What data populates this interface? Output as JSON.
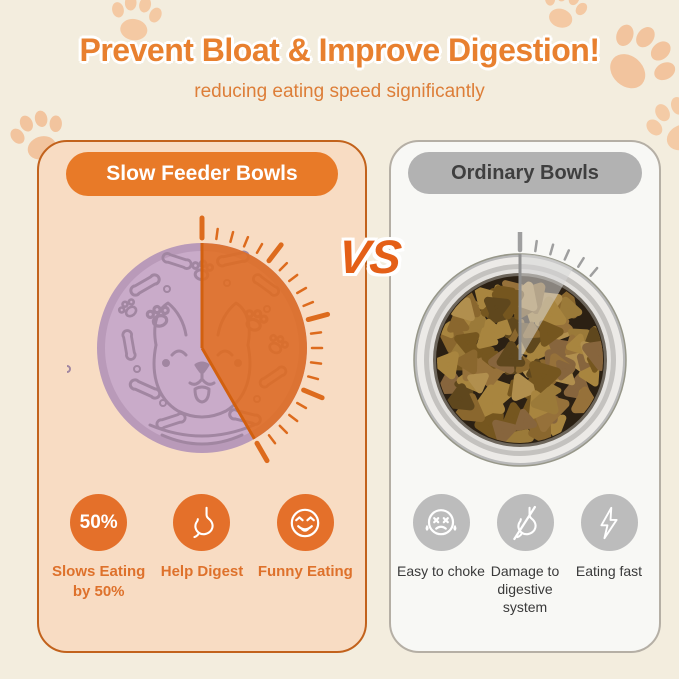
{
  "header": {
    "title": "Prevent Bloat & Improve Digestion!",
    "subtitle": "reducing eating speed significantly"
  },
  "vs_label": "VS",
  "left_panel": {
    "title": "Slow Feeder Bowls",
    "bowl_description": "slow feeder bowl, half lilac half orange, with dog face, bones and paw pattern, timer wedge covering about 150 degrees",
    "features": [
      {
        "icon": "badge-50-percent-icon",
        "badge": "50%",
        "label": "Slows Eating by 50%"
      },
      {
        "icon": "stomach-icon",
        "label": "Help Digest"
      },
      {
        "icon": "laughing-face-icon",
        "label": "Funny Eating"
      }
    ]
  },
  "right_panel": {
    "title": "Ordinary Bowls",
    "bowl_description": "stainless steel bowl full of kibble, timer wedge covering about 30 degrees",
    "features": [
      {
        "icon": "choking-face-icon",
        "label": "Easy to choke"
      },
      {
        "icon": "stomach-slash-icon",
        "label": "Damage to digestive system"
      },
      {
        "icon": "lightning-icon",
        "label": "Eating fast"
      }
    ]
  },
  "colors": {
    "background": "#f3edde",
    "accent_orange": "#e87a28",
    "title_orange": "#e8802f",
    "wedge_orange": "#e46c18",
    "panel_left_fill": "#f8dcc3",
    "panel_left_border": "#c2621c",
    "panel_right_fill": "#f8f8f5",
    "panel_right_border": "#b5afa5",
    "pill_gray": "#b2b2b2",
    "icon_gray": "#bcbcbc",
    "bowl_lilac": "#c9abc9",
    "paw_print": "#f4c9a3"
  }
}
